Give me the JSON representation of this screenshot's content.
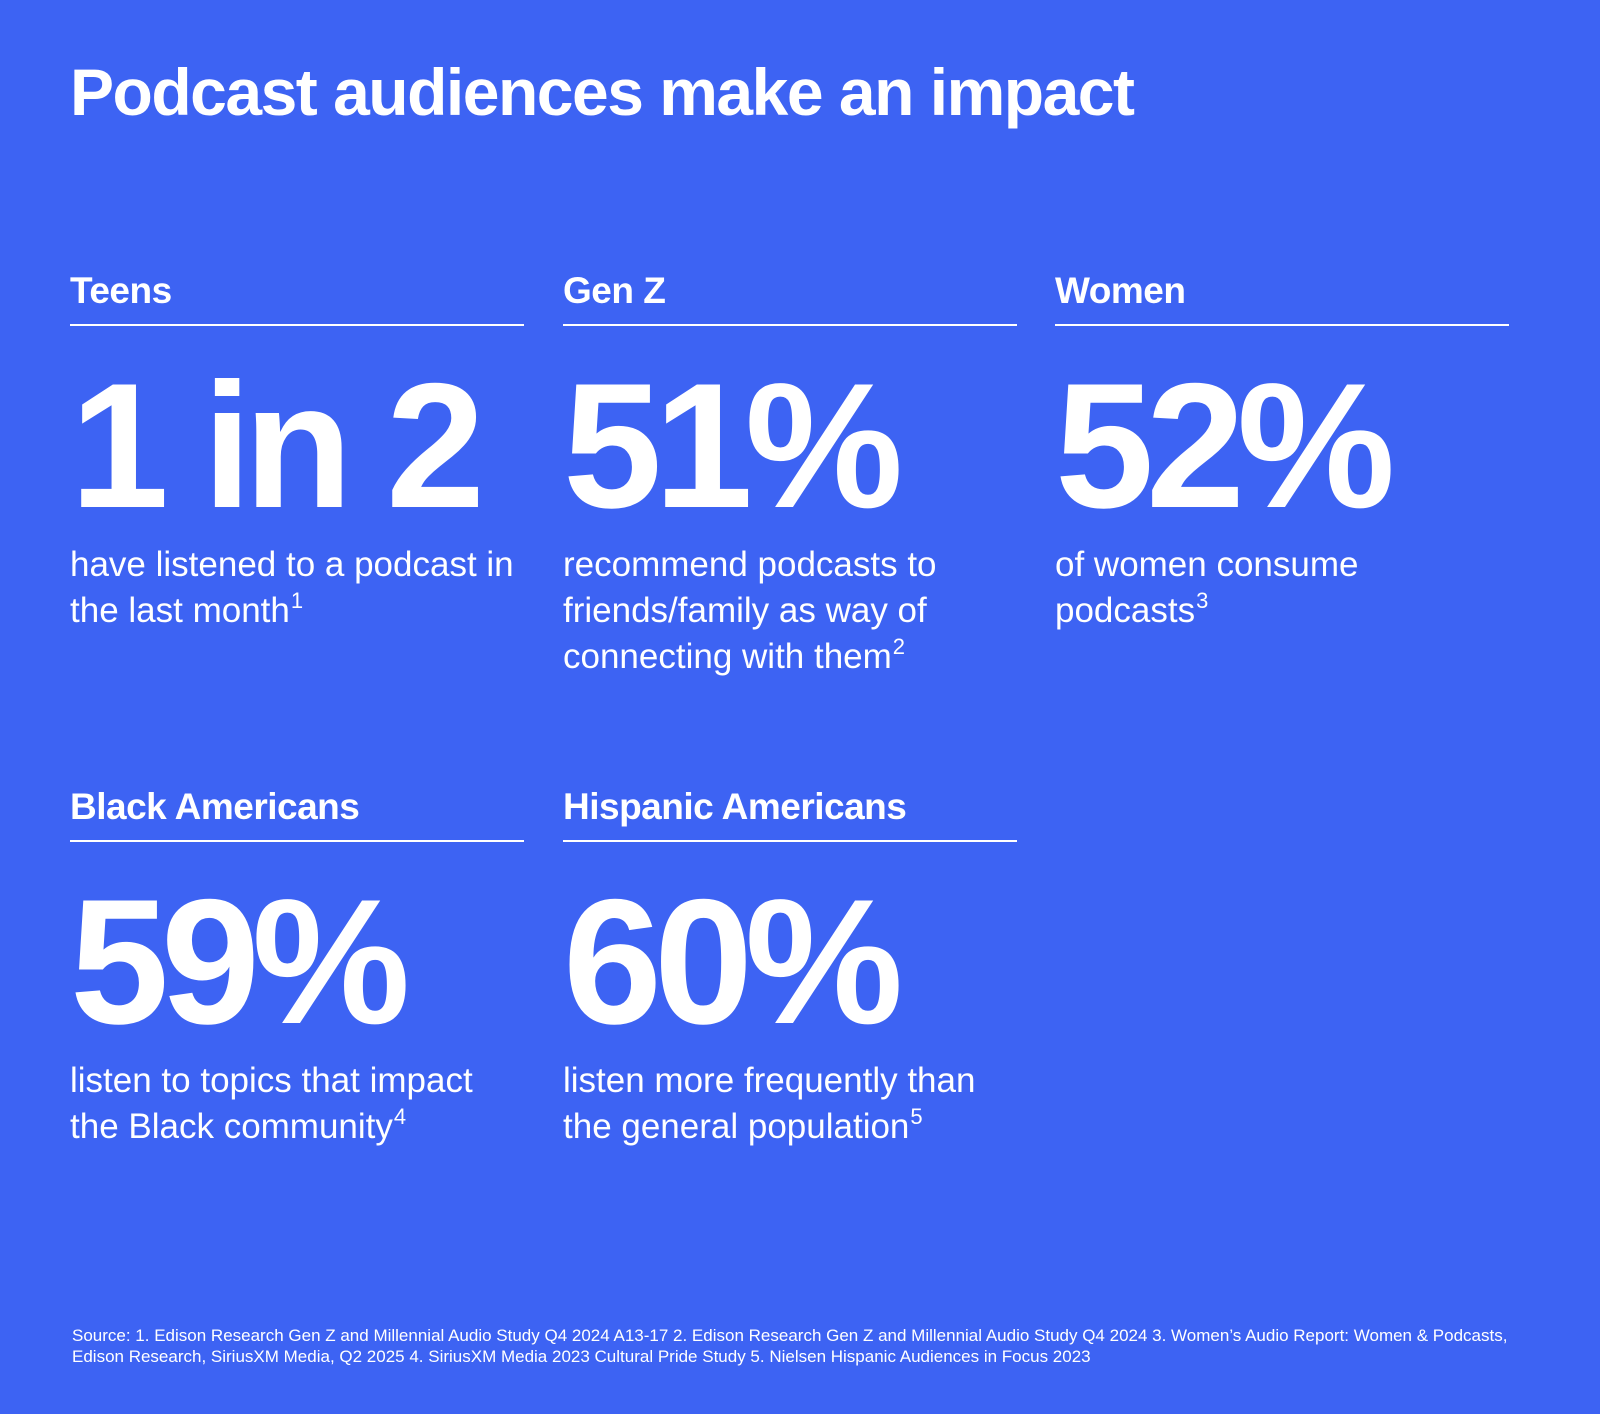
{
  "title": "Podcast audiences make an impact",
  "stats": [
    {
      "label": "Teens",
      "value": "1 in 2",
      "description": "have listened to a podcast in the last month",
      "footnote": "1"
    },
    {
      "label": "Gen Z",
      "value": "51%",
      "description": "recommend podcasts to friends/family as way of connecting with them",
      "footnote": "2"
    },
    {
      "label": "Women",
      "value": "52%",
      "description": "of women consume podcasts",
      "footnote": "3"
    },
    {
      "label": "Black Americans",
      "value": "59%",
      "description": "listen to topics that impact the Black community",
      "footnote": "4"
    },
    {
      "label": "Hispanic Americans",
      "value": "60%",
      "description": "listen more frequently than the general population",
      "footnote": "5"
    }
  ],
  "source": "Source: 1. Edison Research Gen Z and Millennial Audio Study Q4 2024 A13-17 2. Edison Research Gen Z and Millennial Audio Study Q4 2024 3. Women’s Audio Report: Women & Podcasts, Edison Research, SiriusXM Media, Q2 2025 4. SiriusXM Media 2023 Cultural Pride Study 5. Nielsen Hispanic Audiences in Focus 2023",
  "colors": {
    "background": "#3d63f3",
    "text": "#ffffff"
  }
}
